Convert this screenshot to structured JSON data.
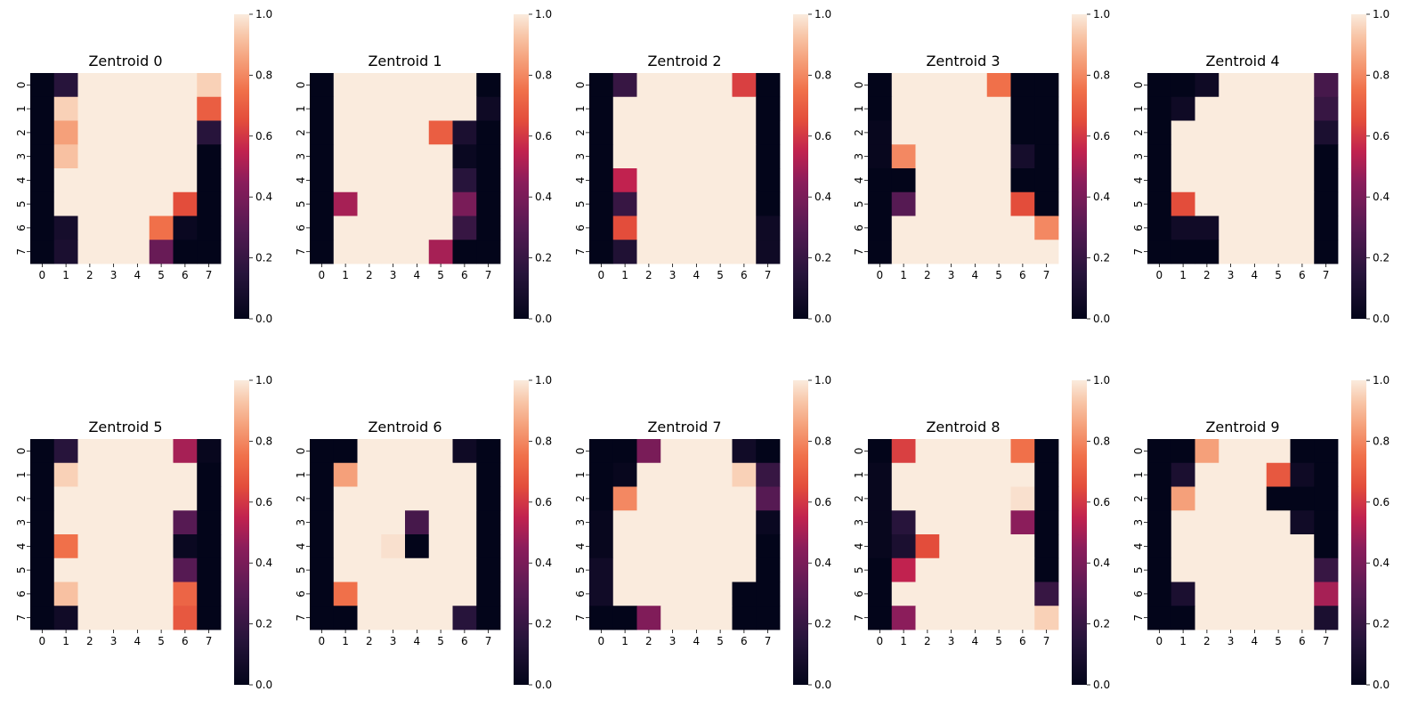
{
  "chart_data": [
    {
      "type": "heatmap",
      "title": "Zentroid 0",
      "x_ticks": [
        "0",
        "1",
        "2",
        "3",
        "4",
        "5",
        "6",
        "7"
      ],
      "y_ticks": [
        "0",
        "1",
        "2",
        "3",
        "4",
        "5",
        "6",
        "7"
      ],
      "colorbar": {
        "min": 0,
        "max": 1,
        "ticks": [
          "0.0",
          "0.2",
          "0.4",
          "0.6",
          "0.8",
          "1.0"
        ]
      },
      "values": [
        [
          0,
          0.15,
          1,
          1,
          1,
          1,
          1,
          0.95
        ],
        [
          0,
          0.95,
          1,
          1,
          1,
          1,
          1,
          0.7
        ],
        [
          0,
          0.85,
          1,
          1,
          1,
          1,
          1,
          0.15
        ],
        [
          0,
          0.92,
          1,
          1,
          1,
          1,
          1,
          0
        ],
        [
          0,
          1,
          1,
          1,
          1,
          1,
          1,
          0
        ],
        [
          0,
          1,
          1,
          1,
          1,
          1,
          0.65,
          0
        ],
        [
          0,
          0.08,
          1,
          1,
          1,
          0.75,
          0.03,
          0
        ],
        [
          0,
          0.1,
          1,
          1,
          1,
          0.35,
          0,
          0
        ]
      ]
    },
    {
      "type": "heatmap",
      "title": "Zentroid 1",
      "x_ticks": [
        "0",
        "1",
        "2",
        "3",
        "4",
        "5",
        "6",
        "7"
      ],
      "y_ticks": [
        "0",
        "1",
        "2",
        "3",
        "4",
        "5",
        "6",
        "7"
      ],
      "colorbar": {
        "min": 0,
        "max": 1,
        "ticks": [
          "0.0",
          "0.2",
          "0.4",
          "0.6",
          "0.8",
          "1.0"
        ]
      },
      "values": [
        [
          0,
          1,
          1,
          1,
          1,
          1,
          1,
          0
        ],
        [
          0,
          1,
          1,
          1,
          1,
          1,
          1,
          0.05
        ],
        [
          0,
          1,
          1,
          1,
          1,
          0.7,
          0.1,
          0
        ],
        [
          0,
          1,
          1,
          1,
          1,
          1,
          0.03,
          0
        ],
        [
          0,
          1,
          1,
          1,
          1,
          1,
          0.15,
          0
        ],
        [
          0,
          0.5,
          1,
          1,
          1,
          1,
          0.4,
          0
        ],
        [
          0,
          1,
          1,
          1,
          1,
          1,
          0.2,
          0
        ],
        [
          0,
          1,
          1,
          1,
          1,
          0.5,
          0,
          0
        ]
      ]
    },
    {
      "type": "heatmap",
      "title": "Zentroid 2",
      "x_ticks": [
        "0",
        "1",
        "2",
        "3",
        "4",
        "5",
        "6",
        "7"
      ],
      "y_ticks": [
        "0",
        "1",
        "2",
        "3",
        "4",
        "5",
        "6",
        "7"
      ],
      "colorbar": {
        "min": 0,
        "max": 1,
        "ticks": [
          "0.0",
          "0.2",
          "0.4",
          "0.6",
          "0.8",
          "1.0"
        ]
      },
      "values": [
        [
          0,
          0.2,
          1,
          1,
          1,
          1,
          0.62,
          0
        ],
        [
          0,
          1,
          1,
          1,
          1,
          1,
          1,
          0
        ],
        [
          0,
          1,
          1,
          1,
          1,
          1,
          1,
          0
        ],
        [
          0,
          1,
          1,
          1,
          1,
          1,
          1,
          0
        ],
        [
          0,
          0.55,
          1,
          1,
          1,
          1,
          1,
          0
        ],
        [
          0,
          0.2,
          1,
          1,
          1,
          1,
          1,
          0
        ],
        [
          0,
          0.65,
          1,
          1,
          1,
          1,
          1,
          0.05
        ],
        [
          0,
          0.12,
          1,
          1,
          1,
          1,
          1,
          0.05
        ]
      ]
    },
    {
      "type": "heatmap",
      "title": "Zentroid 3",
      "x_ticks": [
        "0",
        "1",
        "2",
        "3",
        "4",
        "5",
        "6",
        "7"
      ],
      "y_ticks": [
        "0",
        "1",
        "2",
        "3",
        "4",
        "5",
        "6",
        "7"
      ],
      "colorbar": {
        "min": 0,
        "max": 1,
        "ticks": [
          "0.0",
          "0.2",
          "0.4",
          "0.6",
          "0.8",
          "1.0"
        ]
      },
      "values": [
        [
          0,
          1,
          1,
          1,
          1,
          0.75,
          0,
          0
        ],
        [
          0,
          1,
          1,
          1,
          1,
          1,
          0,
          0
        ],
        [
          0.02,
          1,
          1,
          1,
          1,
          1,
          0,
          0
        ],
        [
          0.02,
          0.8,
          1,
          1,
          1,
          1,
          0.08,
          0
        ],
        [
          0,
          0,
          1,
          1,
          1,
          1,
          0,
          0
        ],
        [
          0,
          0.3,
          1,
          1,
          1,
          1,
          0.65,
          0
        ],
        [
          0,
          1,
          1,
          1,
          1,
          1,
          1,
          0.8
        ],
        [
          0,
          1,
          1,
          1,
          1,
          1,
          1,
          1
        ]
      ]
    },
    {
      "type": "heatmap",
      "title": "Zentroid 4",
      "x_ticks": [
        "0",
        "1",
        "2",
        "3",
        "4",
        "5",
        "6",
        "7"
      ],
      "y_ticks": [
        "0",
        "1",
        "2",
        "3",
        "4",
        "5",
        "6",
        "7"
      ],
      "colorbar": {
        "min": 0,
        "max": 1,
        "ticks": [
          "0.0",
          "0.2",
          "0.4",
          "0.6",
          "0.8",
          "1.0"
        ]
      },
      "values": [
        [
          0,
          0,
          0.05,
          1,
          1,
          1,
          1,
          0.25
        ],
        [
          0,
          0.05,
          1,
          1,
          1,
          1,
          1,
          0.2
        ],
        [
          0,
          1,
          1,
          1,
          1,
          1,
          1,
          0.1
        ],
        [
          0,
          1,
          1,
          1,
          1,
          1,
          1,
          0
        ],
        [
          0,
          1,
          1,
          1,
          1,
          1,
          1,
          0
        ],
        [
          0,
          0.65,
          1,
          1,
          1,
          1,
          1,
          0
        ],
        [
          0,
          0.06,
          0.06,
          1,
          1,
          1,
          1,
          0
        ],
        [
          0,
          0,
          0,
          1,
          1,
          1,
          1,
          0
        ]
      ]
    },
    {
      "type": "heatmap",
      "title": "Zentroid 5",
      "x_ticks": [
        "0",
        "1",
        "2",
        "3",
        "4",
        "5",
        "6",
        "7"
      ],
      "y_ticks": [
        "0",
        "1",
        "2",
        "3",
        "4",
        "5",
        "6",
        "7"
      ],
      "colorbar": {
        "min": 0,
        "max": 1,
        "ticks": [
          "0.0",
          "0.2",
          "0.4",
          "0.6",
          "0.8",
          "1.0"
        ]
      },
      "values": [
        [
          0,
          0.15,
          1,
          1,
          1,
          1,
          0.5,
          0.02
        ],
        [
          0,
          0.95,
          1,
          1,
          1,
          1,
          1,
          0
        ],
        [
          0,
          1,
          1,
          1,
          1,
          1,
          1,
          0
        ],
        [
          0,
          1,
          1,
          1,
          1,
          1,
          0.3,
          0
        ],
        [
          0,
          0.75,
          1,
          1,
          1,
          1,
          0.03,
          0
        ],
        [
          0,
          1,
          1,
          1,
          1,
          1,
          0.3,
          0
        ],
        [
          0,
          0.92,
          1,
          1,
          1,
          1,
          0.72,
          0
        ],
        [
          0,
          0.06,
          1,
          1,
          1,
          1,
          0.68,
          0
        ]
      ]
    },
    {
      "type": "heatmap",
      "title": "Zentroid 6",
      "x_ticks": [
        "0",
        "1",
        "2",
        "3",
        "4",
        "5",
        "6",
        "7"
      ],
      "y_ticks": [
        "0",
        "1",
        "2",
        "3",
        "4",
        "5",
        "6",
        "7"
      ],
      "colorbar": {
        "min": 0,
        "max": 1,
        "ticks": [
          "0.0",
          "0.2",
          "0.4",
          "0.6",
          "0.8",
          "1.0"
        ]
      },
      "values": [
        [
          0,
          0,
          1,
          1,
          1,
          1,
          0.05,
          0
        ],
        [
          0,
          0.85,
          1,
          1,
          1,
          1,
          1,
          0
        ],
        [
          0,
          1,
          1,
          1,
          1,
          1,
          1,
          0
        ],
        [
          0,
          1,
          1,
          1,
          0.25,
          1,
          1,
          0
        ],
        [
          0,
          1,
          1,
          0.98,
          0,
          1,
          1,
          0
        ],
        [
          0,
          1,
          1,
          1,
          1,
          1,
          1,
          0
        ],
        [
          0,
          0.75,
          1,
          1,
          1,
          1,
          1,
          0
        ],
        [
          0,
          0,
          1,
          1,
          1,
          1,
          0.15,
          0
        ]
      ]
    },
    {
      "type": "heatmap",
      "title": "Zentroid 7",
      "x_ticks": [
        "0",
        "1",
        "2",
        "3",
        "4",
        "5",
        "6",
        "7"
      ],
      "y_ticks": [
        "0",
        "1",
        "2",
        "3",
        "4",
        "5",
        "6",
        "7"
      ],
      "colorbar": {
        "min": 0,
        "max": 1,
        "ticks": [
          "0.0",
          "0.2",
          "0.4",
          "0.6",
          "0.8",
          "1.0"
        ]
      },
      "values": [
        [
          0,
          0,
          0.4,
          1,
          1,
          1,
          0.06,
          0
        ],
        [
          0,
          0.02,
          1,
          1,
          1,
          1,
          0.95,
          0.2
        ],
        [
          0,
          0.8,
          1,
          1,
          1,
          1,
          1,
          0.3
        ],
        [
          0.02,
          1,
          1,
          1,
          1,
          1,
          1,
          0.03
        ],
        [
          0.02,
          1,
          1,
          1,
          1,
          1,
          1,
          0
        ],
        [
          0.06,
          1,
          1,
          1,
          1,
          1,
          1,
          0
        ],
        [
          0.06,
          1,
          1,
          1,
          1,
          1,
          0,
          0
        ],
        [
          0,
          0,
          0.42,
          1,
          1,
          1,
          0,
          0
        ]
      ]
    },
    {
      "type": "heatmap",
      "title": "Zentroid 8",
      "x_ticks": [
        "0",
        "1",
        "2",
        "3",
        "4",
        "5",
        "6",
        "7"
      ],
      "y_ticks": [
        "0",
        "1",
        "2",
        "3",
        "4",
        "5",
        "6",
        "7"
      ],
      "colorbar": {
        "min": 0,
        "max": 1,
        "ticks": [
          "0.0",
          "0.2",
          "0.4",
          "0.6",
          "0.8",
          "1.0"
        ]
      },
      "values": [
        [
          0,
          0.62,
          1,
          1,
          1,
          1,
          0.75,
          0
        ],
        [
          0.02,
          1,
          1,
          1,
          1,
          1,
          1,
          0
        ],
        [
          0.02,
          1,
          1,
          1,
          1,
          1,
          0.98,
          0
        ],
        [
          0.02,
          0.15,
          1,
          1,
          1,
          1,
          0.45,
          0
        ],
        [
          0.02,
          0.1,
          0.65,
          1,
          1,
          1,
          1,
          0
        ],
        [
          0,
          0.55,
          1,
          1,
          1,
          1,
          1,
          0
        ],
        [
          0,
          1,
          1,
          1,
          1,
          1,
          1,
          0.2
        ],
        [
          0,
          0.45,
          1,
          1,
          1,
          1,
          1,
          0.95
        ]
      ]
    },
    {
      "type": "heatmap",
      "title": "Zentroid 9",
      "x_ticks": [
        "0",
        "1",
        "2",
        "3",
        "4",
        "5",
        "6",
        "7"
      ],
      "y_ticks": [
        "0",
        "1",
        "2",
        "3",
        "4",
        "5",
        "6",
        "7"
      ],
      "colorbar": {
        "min": 0,
        "max": 1,
        "ticks": [
          "0.0",
          "0.2",
          "0.4",
          "0.6",
          "0.8",
          "1.0"
        ]
      },
      "values": [
        [
          0,
          0,
          0.85,
          1,
          1,
          1,
          0,
          0
        ],
        [
          0,
          0.1,
          1,
          1,
          1,
          0.68,
          0.05,
          0
        ],
        [
          0,
          0.85,
          1,
          1,
          1,
          0,
          0,
          0
        ],
        [
          0,
          1,
          1,
          1,
          1,
          1,
          0.06,
          0
        ],
        [
          0,
          1,
          1,
          1,
          1,
          1,
          1,
          0
        ],
        [
          0,
          1,
          1,
          1,
          1,
          1,
          1,
          0.2
        ],
        [
          0,
          0.1,
          1,
          1,
          1,
          1,
          1,
          0.5
        ],
        [
          0,
          0,
          1,
          1,
          1,
          1,
          1,
          0.1
        ]
      ]
    }
  ]
}
